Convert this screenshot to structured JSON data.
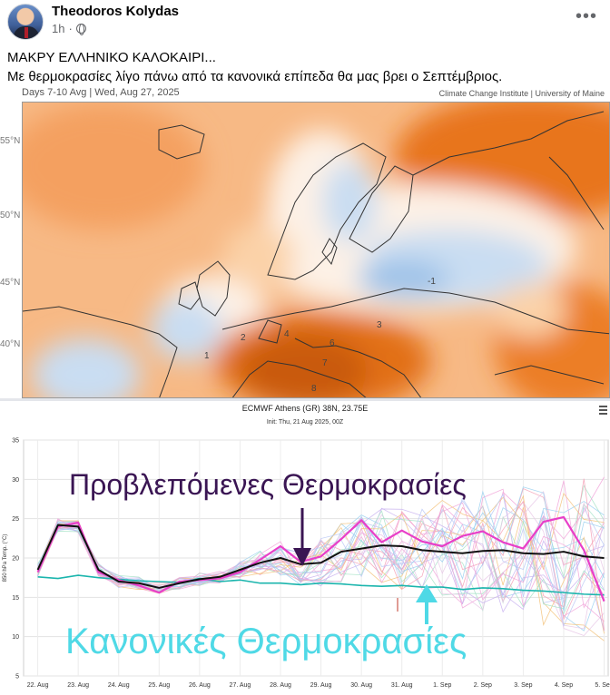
{
  "post": {
    "author": "Theodoros Kolydas",
    "time": "1h",
    "privacy_icon": "globe-icon",
    "more_icon": "more-options-icon",
    "line1": "ΜΑΚΡΥ ΕΛΛΗΝΙΚΟ ΚΑΛΟΚΑΙΡΙ...",
    "line2": "Με θερμοκρασίες λίγο πάνω από τα κανονικά επίπεδα θα μας βρει ο Σεπτέμβριος."
  },
  "map": {
    "caption": "Days 7-10 Avg | Wed, Aug 27, 2025",
    "credit": "Climate Change Institute | University of Maine",
    "lat_labels": [
      "55°N",
      "50°N",
      "45°N",
      "40°N"
    ],
    "colors": {
      "warm_strong": "#e8741c",
      "warm": "#f5a25b",
      "warm_light": "#fbd2a8",
      "neutral": "#fdf1e6",
      "cool": "#c9ddf2",
      "cool_strong": "#9ec2e8",
      "land_outline": "#333333"
    },
    "contour_labels": [
      "4",
      "6",
      "7",
      "8",
      "3",
      "2",
      "-1",
      "1"
    ]
  },
  "chart_data": {
    "type": "line",
    "title": "ECMWF Athens (GR) 38N, 23.75E",
    "subtitle": "Init: Thu, 21 Aug 2025, 00Z",
    "ylabel": "850 hPa Temp. (°C)",
    "ylim": [
      5,
      35
    ],
    "yticks": [
      5,
      10,
      15,
      20,
      25,
      30,
      35
    ],
    "xticks": [
      "22. Aug",
      "23. Aug",
      "24. Aug",
      "25. Aug",
      "26. Aug",
      "27. Aug",
      "28. Aug",
      "29. Aug",
      "30. Aug",
      "31. Aug",
      "1. Sep",
      "2. Sep",
      "3. Sep",
      "4. Sep",
      "5. Sep"
    ],
    "grid": true,
    "x_days": [
      0,
      0.5,
      1,
      1.5,
      2,
      2.5,
      3,
      3.5,
      4,
      4.5,
      5,
      5.5,
      6,
      6.5,
      7,
      7.5,
      8,
      8.5,
      9,
      9.5,
      10,
      10.5,
      11,
      11.5,
      12,
      12.5,
      13,
      13.5,
      14
    ],
    "series": [
      {
        "role": "mean",
        "color": "#111111",
        "values": [
          18.5,
          24.2,
          24.0,
          18.5,
          17.0,
          16.8,
          16.2,
          16.8,
          17.3,
          17.6,
          18.5,
          19.4,
          20.0,
          19.2,
          19.4,
          20.8,
          21.2,
          21.6,
          21.5,
          21.0,
          20.8,
          20.6,
          20.9,
          21.0,
          20.6,
          20.5,
          20.8,
          20.2,
          20.0
        ]
      },
      {
        "role": "control",
        "color": "#e83fc8",
        "values": [
          18.2,
          24.0,
          24.5,
          18.2,
          17.2,
          16.5,
          15.6,
          17.0,
          17.2,
          17.4,
          18.2,
          19.8,
          21.5,
          19.5,
          20.2,
          22.4,
          24.8,
          22.0,
          23.5,
          22.1,
          21.5,
          22.8,
          23.4,
          22.0,
          21.2,
          24.6,
          25.2,
          21.0,
          14.5
        ]
      },
      {
        "role": "climatology",
        "color": "#1bb5ad",
        "values": [
          17.6,
          17.4,
          17.8,
          17.5,
          17.3,
          17.1,
          17.0,
          16.9,
          17.4,
          17.0,
          17.2,
          16.8,
          16.8,
          16.6,
          16.8,
          16.7,
          16.5,
          16.4,
          16.5,
          16.3,
          16.3,
          16.0,
          16.2,
          16.1,
          15.9,
          15.8,
          15.6,
          15.4,
          15.3
        ]
      }
    ],
    "annotations": [
      {
        "text": "Προβλεπόμενες Θερμοκρασίες",
        "color": "#3a1553"
      },
      {
        "text": "Κανονικές  Θερμοκρασίες",
        "color": "#4fd9e6"
      }
    ]
  }
}
